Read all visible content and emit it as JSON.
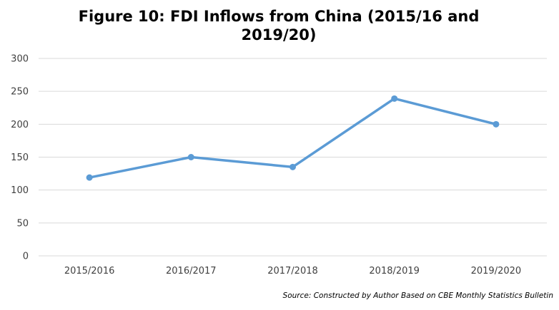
{
  "chart_data": {
    "type": "line",
    "title": "Figure 10: FDI Inflows from China (2015/16 and 2019/20)",
    "categories": [
      "2015/2016",
      "2016/2017",
      "2017/2018",
      "2018/2019",
      "2019/2020"
    ],
    "series": [
      {
        "values": [
          119,
          150,
          135,
          239,
          200
        ]
      }
    ],
    "ylim": [
      0,
      300
    ],
    "yticks": [
      "0",
      "50",
      "100",
      "150",
      "200",
      "250",
      "300"
    ],
    "xlabel": "",
    "ylabel": "",
    "grid": true,
    "legend": "none",
    "line_color": "#5b9bd5",
    "grid_color": "#d9d9d9"
  },
  "source_note": "Source: Constructed by Author Based on CBE Monthly Statistics Bulletin"
}
